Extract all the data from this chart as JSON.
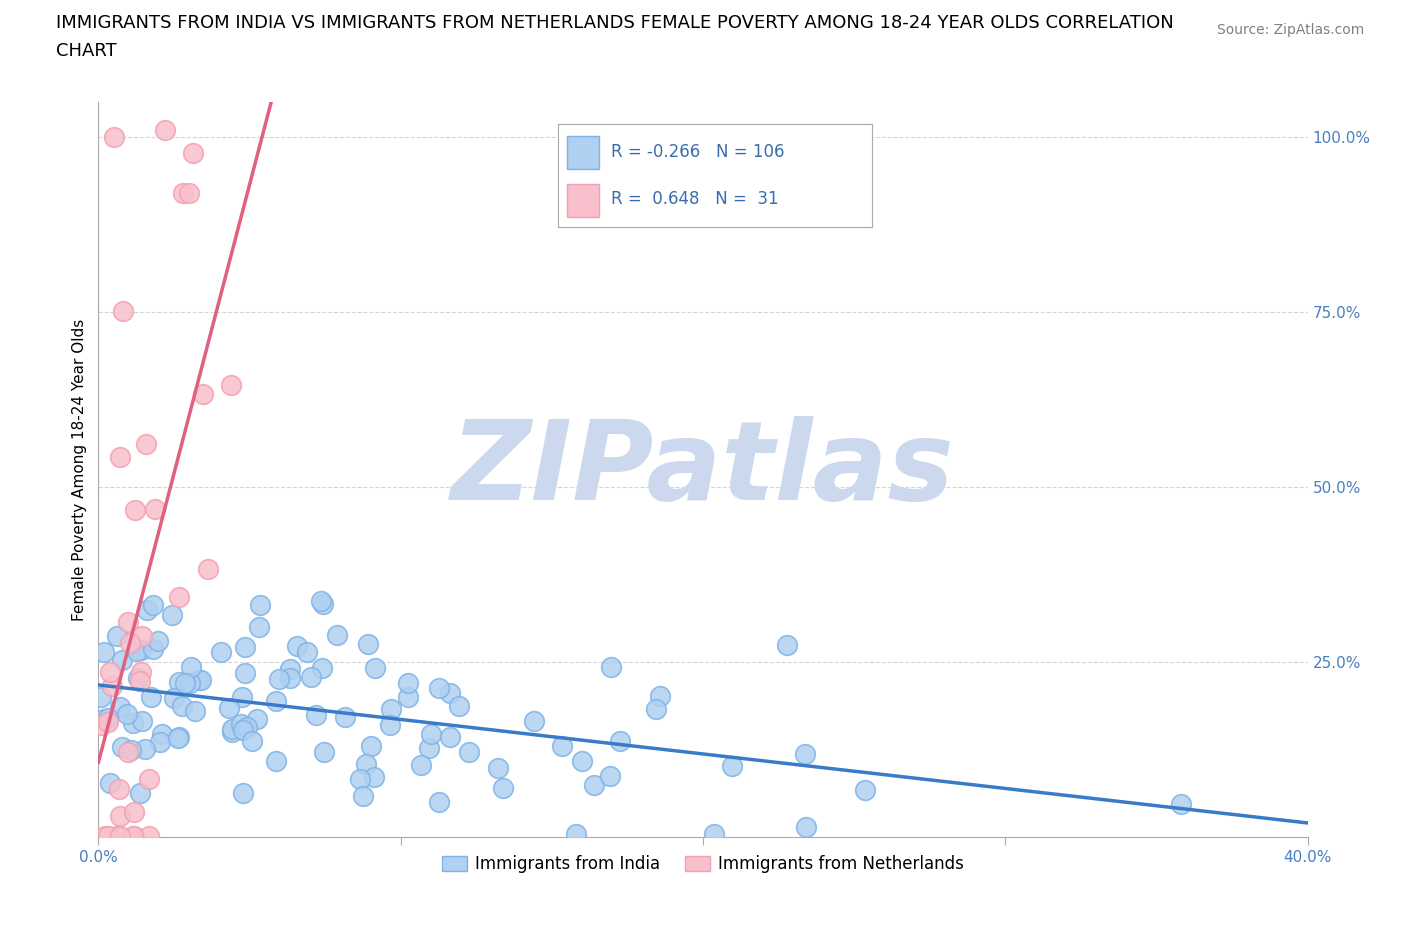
{
  "title_line1": "IMMIGRANTS FROM INDIA VS IMMIGRANTS FROM NETHERLANDS FEMALE POVERTY AMONG 18-24 YEAR OLDS CORRELATION",
  "title_line2": "CHART",
  "source_text": "Source: ZipAtlas.com",
  "ylabel": "Female Poverty Among 18-24 Year Olds",
  "xlim": [
    0.0,
    0.4
  ],
  "ylim": [
    0.0,
    1.05
  ],
  "xticks": [
    0.0,
    0.1,
    0.2,
    0.3,
    0.4
  ],
  "xticklabels": [
    "0.0%",
    "",
    "",
    "",
    "40.0%"
  ],
  "yticks_right": [
    0.25,
    0.5,
    0.75,
    1.0
  ],
  "ytick_right_labels": [
    "25.0%",
    "50.0%",
    "75.0%",
    "100.0%"
  ],
  "grid_color": "#cccccc",
  "background_color": "#ffffff",
  "watermark_text": "ZIPatlas",
  "watermark_color": "#ccd8ee",
  "india_color": "#7fb3e8",
  "india_color_fill": "#afd0f0",
  "netherlands_color": "#f4a0b0",
  "netherlands_color_fill": "#f8c0cc",
  "india_R": -0.266,
  "india_N": 106,
  "netherlands_R": 0.648,
  "netherlands_N": 31,
  "india_label": "Immigrants from India",
  "netherlands_label": "Immigrants from Netherlands",
  "india_line_color": "#3a7bc8",
  "netherlands_line_color": "#e06080",
  "title_fontsize": 13,
  "axis_label_fontsize": 11,
  "tick_fontsize": 11,
  "legend_fontsize": 13,
  "source_fontsize": 10
}
